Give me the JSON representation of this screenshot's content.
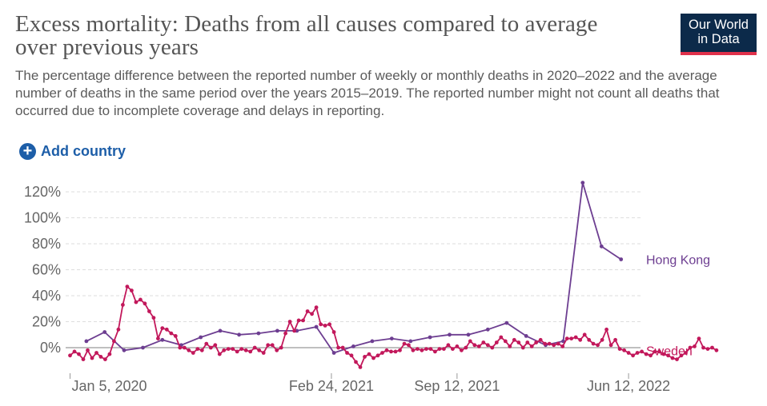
{
  "header": {
    "title": "Excess mortality: Deaths from all causes compared to average over previous years",
    "subtitle": "The percentage difference between the reported number of weekly or monthly deaths in 2020–2022 and the average number of deaths in the same period over the years 2015–2019. The reported number might not count all deaths that occurred due to incomplete coverage and delays in reporting.",
    "logo_line1": "Our World",
    "logo_line2": "in Data"
  },
  "controls": {
    "add_country_label": "Add country",
    "add_country_icon": "plus-circle-icon"
  },
  "colors": {
    "hong_kong": "#6d3e91",
    "sweden": "#c2185b",
    "grid": "#dddddd",
    "zero_line": "#999999",
    "accent": "#1d5ea8"
  },
  "chart_data": {
    "type": "line",
    "title": "Excess mortality: Deaths from all causes compared to average over previous years",
    "x_unit": "date",
    "y_unit": "%",
    "ylim": [
      -20,
      125
    ],
    "xlim": [
      "2019-12-29",
      "2022-07-01"
    ],
    "y_ticks": [
      0,
      20,
      40,
      60,
      80,
      100,
      120
    ],
    "y_tick_labels": [
      "0%",
      "20%",
      "40%",
      "60%",
      "80%",
      "100%",
      "120%"
    ],
    "x_ticks": [
      "2020-01-05",
      "2021-02-24",
      "2021-09-12",
      "2022-06-12"
    ],
    "x_tick_labels": [
      "Jan 5, 2020",
      "Feb 24, 2021",
      "Sep 12, 2021",
      "Jun 12, 2022"
    ],
    "grid": "horizontal",
    "series": [
      {
        "name": "Hong Kong",
        "color": "#6d3e91",
        "points": [
          [
            "2020-01-31",
            5
          ],
          [
            "2020-02-29",
            12
          ],
          [
            "2020-03-31",
            -2
          ],
          [
            "2020-04-30",
            0
          ],
          [
            "2020-05-31",
            6
          ],
          [
            "2020-06-30",
            2
          ],
          [
            "2020-07-31",
            8
          ],
          [
            "2020-08-31",
            13
          ],
          [
            "2020-09-30",
            10
          ],
          [
            "2020-10-31",
            11
          ],
          [
            "2020-11-30",
            13
          ],
          [
            "2020-12-31",
            13
          ],
          [
            "2021-01-31",
            16
          ],
          [
            "2021-02-28",
            -4
          ],
          [
            "2021-03-31",
            1
          ],
          [
            "2021-04-30",
            5
          ],
          [
            "2021-05-31",
            7
          ],
          [
            "2021-06-30",
            5
          ],
          [
            "2021-07-31",
            8
          ],
          [
            "2021-08-31",
            10
          ],
          [
            "2021-09-30",
            10
          ],
          [
            "2021-10-31",
            14
          ],
          [
            "2021-11-30",
            19
          ],
          [
            "2021-12-31",
            9
          ],
          [
            "2022-01-31",
            2
          ],
          [
            "2022-02-28",
            5
          ],
          [
            "2022-03-31",
            127
          ],
          [
            "2022-04-30",
            78
          ],
          [
            "2022-05-31",
            68
          ]
        ]
      },
      {
        "name": "Sweden",
        "color": "#c2185b",
        "start": "2020-01-05",
        "step_days": 7,
        "values": [
          -6,
          -3,
          -5,
          -9,
          -2,
          -8,
          -4,
          -7,
          -9,
          -5,
          5,
          14,
          33,
          47,
          44,
          35,
          37,
          34,
          28,
          23,
          7,
          15,
          14,
          11,
          9,
          0,
          0,
          -2,
          -4,
          -1,
          -2,
          3,
          0,
          2,
          -5,
          -2,
          -1,
          -1,
          -3,
          -1,
          -2,
          -3,
          0,
          -2,
          -4,
          2,
          2,
          -2,
          0,
          11,
          20,
          13,
          21,
          21,
          28,
          26,
          31,
          18,
          17,
          18,
          12,
          0,
          0,
          -4,
          -6,
          -11,
          -15,
          -7,
          -5,
          -8,
          -6,
          -4,
          -2,
          -3,
          -3,
          -2,
          3,
          2,
          -2,
          -1,
          -2,
          -1,
          -1,
          -3,
          -1,
          -1,
          2,
          -1,
          1,
          -2,
          0,
          5,
          2,
          1,
          4,
          2,
          0,
          4,
          8,
          5,
          1,
          6,
          4,
          0,
          4,
          1,
          4,
          6,
          3,
          3,
          2,
          3,
          1,
          7,
          7,
          8,
          6,
          10,
          6,
          3,
          2,
          6,
          14,
          2,
          6,
          -1,
          -2,
          -4,
          -6,
          -4,
          -3,
          -5,
          -6,
          -3,
          -3,
          -5,
          -6,
          -8,
          -9,
          -6,
          -4,
          0,
          1,
          7,
          0,
          -1,
          0,
          -2
        ]
      }
    ],
    "series_end_labels": [
      "Hong Kong",
      "Sweden"
    ]
  }
}
